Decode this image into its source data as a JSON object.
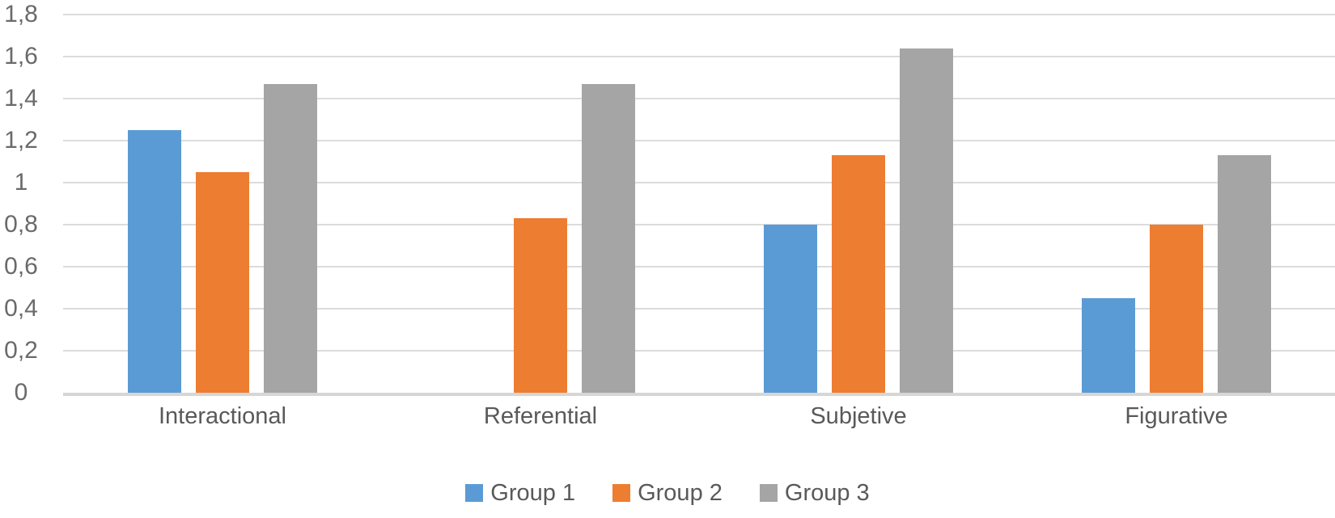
{
  "chart_data": {
    "type": "bar",
    "title": "",
    "xlabel": "",
    "ylabel": "",
    "categories": [
      "Interactional",
      "Referential",
      "Subjetive",
      "Figurative"
    ],
    "series": [
      {
        "name": "Group 1",
        "color": "#5B9BD5",
        "values": [
          1.25,
          0,
          0.8,
          0.45
        ]
      },
      {
        "name": "Group 2",
        "color": "#ED7D31",
        "values": [
          1.05,
          0.83,
          1.13,
          0.8
        ]
      },
      {
        "name": "Group 3",
        "color": "#A5A5A5",
        "values": [
          1.47,
          1.47,
          1.64,
          1.13
        ]
      }
    ],
    "ylim": [
      0,
      1.8
    ],
    "ytick_step": 0.2,
    "ytick_labels": [
      "0",
      "0,2",
      "0,4",
      "0,6",
      "0,8",
      "1",
      "1,2",
      "1,4",
      "1,6",
      "1,8"
    ],
    "decimal_separator": ",",
    "grid": true,
    "legend_position": "bottom"
  },
  "colors": {
    "background": "#FFFFFF",
    "gridline": "#DCDCDC",
    "axis_line": "#D6D6D6",
    "tick_text": "#6A6A6A",
    "label_text": "#595959"
  }
}
